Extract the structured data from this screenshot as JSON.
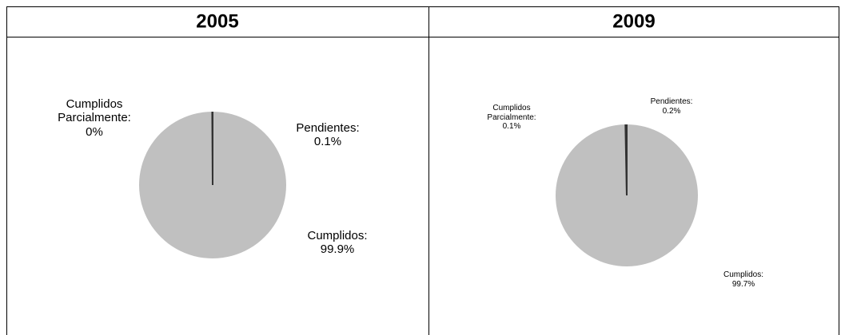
{
  "chart_data": [
    {
      "type": "pie",
      "title": "2005",
      "categories": [
        "Cumplidos:",
        "Pendientes:",
        "Cumplidos Parcialmente:"
      ],
      "values": [
        99.9,
        0.1,
        0
      ],
      "value_labels": [
        "99.9%",
        "0.1%",
        "0%"
      ],
      "color": "#c0c0c0"
    },
    {
      "type": "pie",
      "title": "2009",
      "categories": [
        "Cumplidos:",
        "Pendientes:",
        "Cumplidos Parcialmente:"
      ],
      "values": [
        99.7,
        0.2,
        0.1
      ],
      "value_labels": [
        "99.7%",
        "0.2%",
        "0.1%"
      ],
      "color": "#c0c0c0"
    }
  ]
}
